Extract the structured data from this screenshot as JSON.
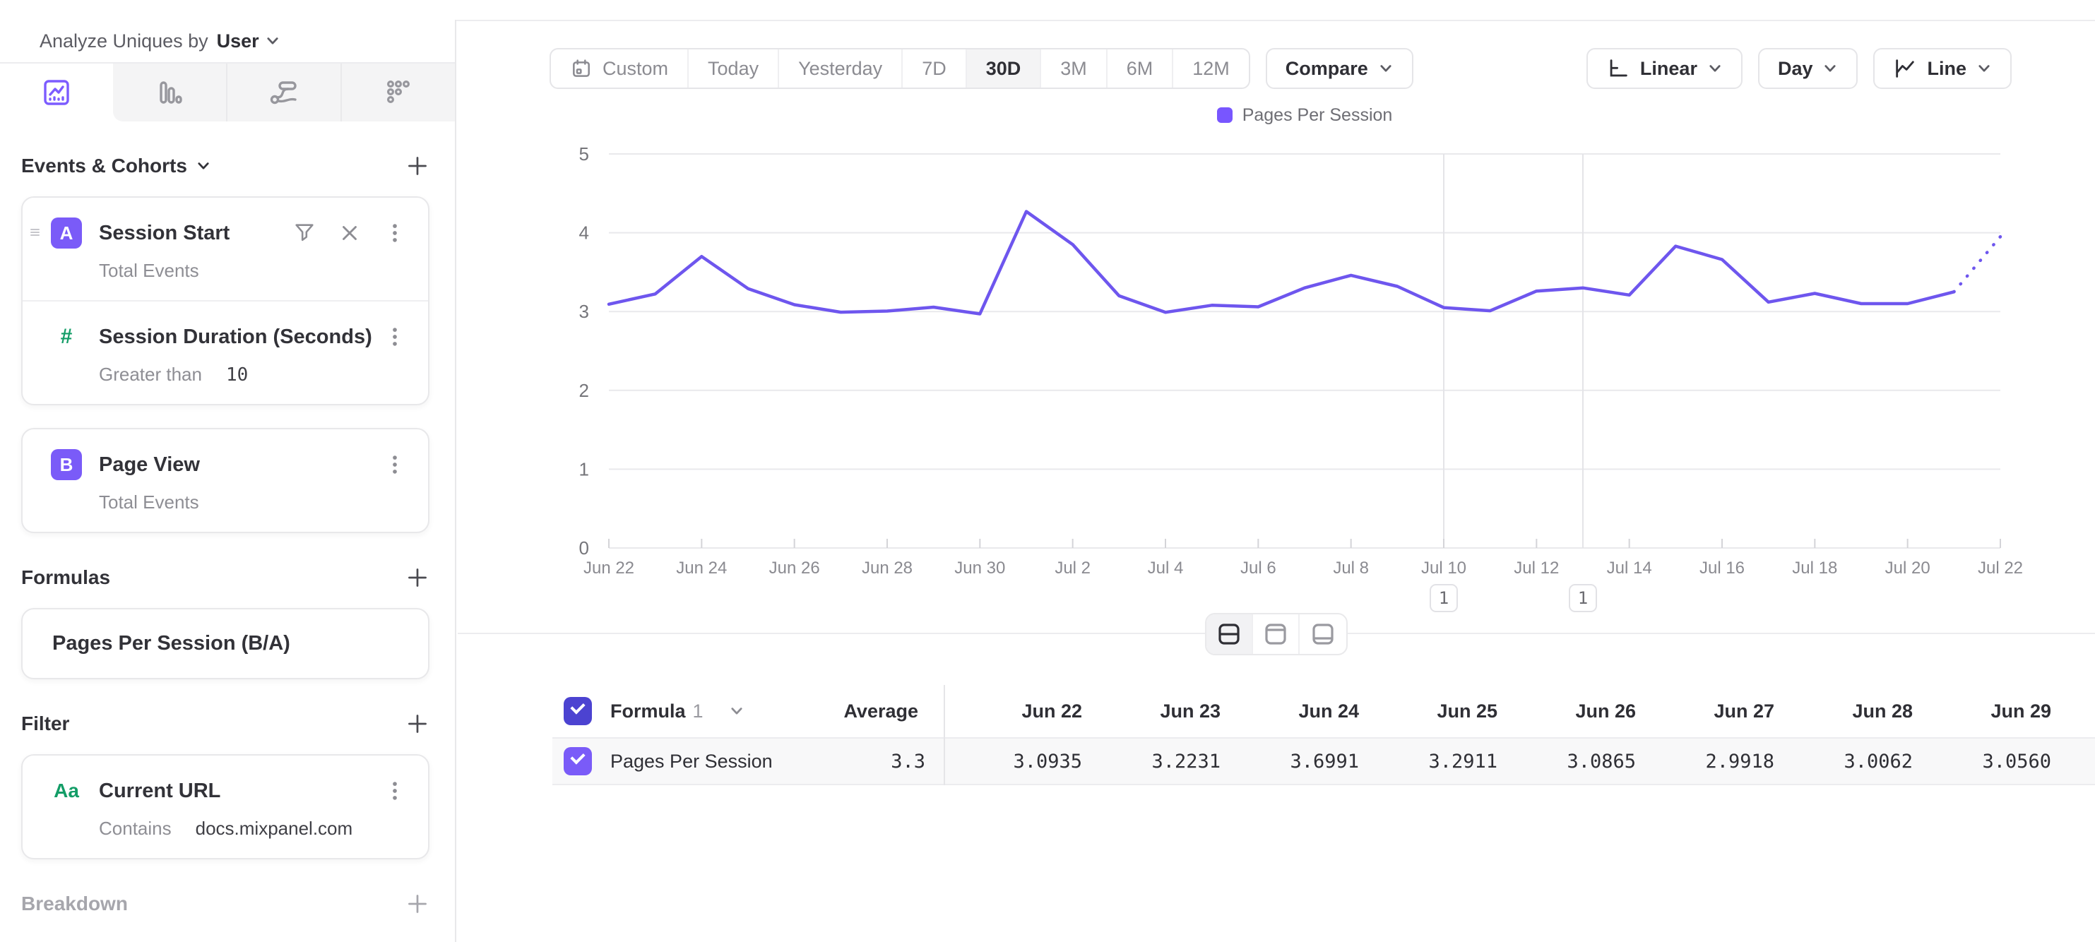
{
  "header": {
    "analyze_label": "Analyze Uniques by",
    "analyze_value": "User"
  },
  "sidebar": {
    "tabs": [
      {
        "name": "insights-line-tab",
        "selected": true
      },
      {
        "name": "bar-tab",
        "selected": false
      },
      {
        "name": "flows-tab",
        "selected": false
      },
      {
        "name": "metrics-tab",
        "selected": false
      }
    ],
    "events_section": {
      "title": "Events & Cohorts"
    },
    "events": [
      {
        "badge": "A",
        "name": "Session Start",
        "subtitle": "Total Events",
        "child": {
          "icon": "#",
          "name": "Session Duration (Seconds)",
          "operator": "Greater than",
          "value": "10"
        }
      },
      {
        "badge": "B",
        "name": "Page View",
        "subtitle": "Total Events"
      }
    ],
    "formulas_section": {
      "title": "Formulas"
    },
    "formulas": [
      {
        "name": "Pages Per Session (B/A)"
      }
    ],
    "filter_section": {
      "title": "Filter"
    },
    "filters": [
      {
        "icon": "Aa",
        "name": "Current URL",
        "operator": "Contains",
        "value": "docs.mixpanel.com"
      }
    ],
    "breakdown_section": {
      "title": "Breakdown"
    }
  },
  "toolbar": {
    "date_ranges": [
      "Custom",
      "Today",
      "Yesterday",
      "7D",
      "30D",
      "3M",
      "6M",
      "12M"
    ],
    "selected_range": "30D",
    "compare_label": "Compare",
    "scale_label": "Linear",
    "granularity_label": "Day",
    "chart_type_label": "Line"
  },
  "chart_data": {
    "type": "line",
    "title": "",
    "legend": [
      "Pages Per Session"
    ],
    "legend_position": "top-center",
    "categories": [
      "Jun 22",
      "Jun 23",
      "Jun 24",
      "Jun 25",
      "Jun 26",
      "Jun 27",
      "Jun 28",
      "Jun 29",
      "Jun 30",
      "Jul 1",
      "Jul 2",
      "Jul 3",
      "Jul 4",
      "Jul 5",
      "Jul 6",
      "Jul 7",
      "Jul 8",
      "Jul 9",
      "Jul 10",
      "Jul 11",
      "Jul 12",
      "Jul 13",
      "Jul 14",
      "Jul 15",
      "Jul 16",
      "Jul 17",
      "Jul 18",
      "Jul 19",
      "Jul 20",
      "Jul 21",
      "Jul 22"
    ],
    "tick_every": 2,
    "series": [
      {
        "name": "Pages Per Session",
        "values": [
          3.0935,
          3.2231,
          3.6991,
          3.2911,
          3.0865,
          2.9918,
          3.0062,
          3.056,
          2.97,
          4.27,
          3.85,
          3.2,
          2.99,
          3.08,
          3.06,
          3.3,
          3.46,
          3.32,
          3.05,
          3.01,
          3.26,
          3.3,
          3.21,
          3.83,
          3.66,
          3.12,
          3.23,
          3.1,
          3.1,
          3.25,
          3.95
        ],
        "dashed_tail_segments": 1
      }
    ],
    "ylim": [
      0,
      5
    ],
    "yticks": [
      0,
      1,
      2,
      3,
      4,
      5
    ],
    "grid": true,
    "annotations": [
      {
        "x": "Jul 10",
        "count": "1"
      },
      {
        "x": "Jul 13",
        "count": "1"
      }
    ]
  },
  "table": {
    "group_label": "Formula",
    "group_number": "1",
    "average_label": "Average",
    "columns": [
      "Jun 22",
      "Jun 23",
      "Jun 24",
      "Jun 25",
      "Jun 26",
      "Jun 27",
      "Jun 28",
      "Jun 29"
    ],
    "rows": [
      {
        "name": "Pages Per Session",
        "average": "3.3",
        "values": [
          "3.0935",
          "3.2231",
          "3.6991",
          "3.2911",
          "3.0865",
          "2.9918",
          "3.0062",
          "3.0560"
        ]
      }
    ]
  },
  "colors": {
    "accent": "#7856ff",
    "line": "#6e56ee",
    "grid": "#e9e9ec",
    "annotation_line": "#e4e4e8",
    "axis_text": "#8a8a90",
    "green": "#139d67"
  }
}
